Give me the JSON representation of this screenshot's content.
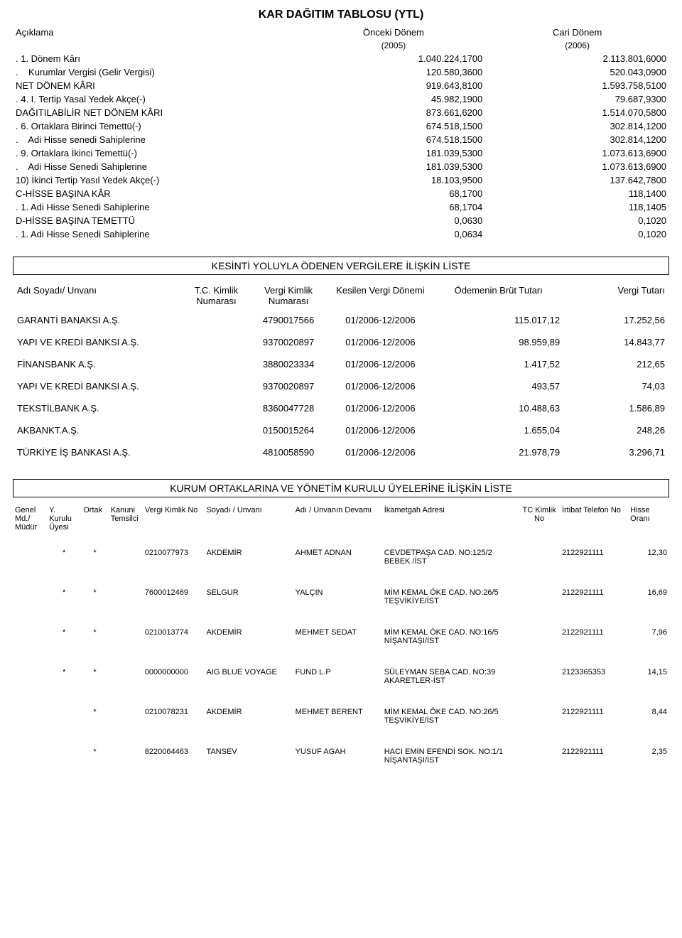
{
  "title": "KAR DAĞITIM TABLOSU (YTL)",
  "cols": {
    "desc": "Açıklama",
    "prev": "Önceki Dönem",
    "prev_year": "(2005)",
    "curr": "Cari Dönem",
    "curr_year": "(2006)"
  },
  "rows": [
    {
      "d": ". 1. Dönem Kârı",
      "p": "1.040.224,1700",
      "c": "2.113.801,6000"
    },
    {
      "d": ".    Kurumlar Vergisi (Gelir Vergisi)",
      "p": "120.580,3600",
      "c": "520.043,0900"
    },
    {
      "d": "NET DÖNEM KÂRI",
      "p": "919.643,8100",
      "c": "1.593.758,5100"
    },
    {
      "d": ". 4. I. Tertip Yasal Yedek Akçe(-)",
      "p": "45.982,1900",
      "c": "79.687,9300"
    },
    {
      "d": "DAĞITILABİLİR NET DÖNEM KÂRI",
      "p": "873.661,6200",
      "c": "1.514.070,5800"
    },
    {
      "d": ". 6. Ortaklara Birinci Temettü(-)",
      "p": "674.518,1500",
      "c": "302.814,1200"
    },
    {
      "d": ".    Adi Hisse senedi Sahiplerine",
      "p": "674.518,1500",
      "c": "302.814,1200"
    },
    {
      "d": ". 9. Ortaklara İkinci Temettü(-)",
      "p": "181.039,5300",
      "c": "1.073.613,6900"
    },
    {
      "d": ".    Adi Hisse Senedi Sahiplerine",
      "p": "181.039,5300",
      "c": "1.073.613,6900"
    },
    {
      "d": "10) İkinci Tertip Yasıl Yedek Akçe(-)",
      "p": "18.103,9500",
      "c": "137.642,7800"
    },
    {
      "d": "C-HİSSE BAŞINA KÂR",
      "p": "68,1700",
      "c": "118,1400"
    },
    {
      "d": ". 1. Adi Hisse Senedi Sahiplerine",
      "p": "68,1704",
      "c": "118,1405"
    },
    {
      "d": "D-HİSSE BAŞINA TEMETTÜ",
      "p": "0,0630",
      "c": "0,1020"
    },
    {
      "d": ". 1. Adi Hisse Senedi Sahiplerine",
      "p": "0,0634",
      "c": "0,1020"
    }
  ],
  "box2": "KESİNTİ YOLUYLA ÖDENEN VERGİLERE İLİŞKİN LİSTE",
  "t2_headers": {
    "name": "Adı Soyadı/ Unvanı",
    "tc": "T.C. Kimlik Numarası",
    "vk": "Vergi Kimlik Numarası",
    "period": "Kesilen Vergi Dönemi",
    "gross": "Ödemenin Brüt Tutarı",
    "tax": "Vergi Tutarı"
  },
  "t2_rows": [
    {
      "name": "GARANTİ BANAKSI A.Ş.",
      "tc": "",
      "vk": "4790017566",
      "period": "01/2006-12/2006",
      "gross": "115.017,12",
      "tax": "17.252,56"
    },
    {
      "name": "YAPI VE KREDİ BANKSI A.Ş.",
      "tc": "",
      "vk": "9370020897",
      "period": "01/2006-12/2006",
      "gross": "98.959,89",
      "tax": "14.843,77"
    },
    {
      "name": "FİNANSBANK A.Ş.",
      "tc": "",
      "vk": "3880023334",
      "period": "01/2006-12/2006",
      "gross": "1.417,52",
      "tax": "212,65"
    },
    {
      "name": "YAPI VE KREDİ BANKSI A.Ş.",
      "tc": "",
      "vk": "9370020897",
      "period": "01/2006-12/2006",
      "gross": "493,57",
      "tax": "74,03"
    },
    {
      "name": "TEKSTİLBANK A.Ş.",
      "tc": "",
      "vk": "8360047728",
      "period": "01/2006-12/2006",
      "gross": "10.488,63",
      "tax": "1.586,89"
    },
    {
      "name": "AKBANKT.A.Ş.",
      "tc": "",
      "vk": "0150015264",
      "period": "01/2006-12/2006",
      "gross": "1.655,04",
      "tax": "248,26"
    },
    {
      "name": "TÜRKİYE İŞ BANKASI A.Ş.",
      "tc": "",
      "vk": "4810058590",
      "period": "01/2006-12/2006",
      "gross": "21.978,79",
      "tax": "3.296,71"
    }
  ],
  "box3": "KURUM ORTAKLARINA VE YÖNETİM KURULU ÜYELERİNE İLİŞKİN LİSTE",
  "t3_headers": {
    "gm": "Genel Md./ Müdür",
    "yk": "Y. Kurulu Üyesi",
    "ortak": "Ortak",
    "kt": "Kanuni Temsilci",
    "vkn": "Vergi Kimlik No",
    "soyad": "Soyadı / Unvanı",
    "ad": "Adı / Unvanın Devamı",
    "adres": "İkametgah Adresi",
    "tckn": "TC Kimlik No",
    "tel": "İrtibat Telefon No",
    "hisse": "Hisse Oranı"
  },
  "t3_rows": [
    {
      "gm": "",
      "yk": "*",
      "ortak": "*",
      "kt": "",
      "vkn": "0210077973",
      "soyad": "AKDEMİR",
      "ad": "AHMET ADNAN",
      "adres": "CEVDETPAŞA CAD. NO:125/2 BEBEK /İST",
      "tckn": "",
      "tel": "2122921111",
      "hisse": "12,30"
    },
    {
      "gm": "",
      "yk": "*",
      "ortak": "*",
      "kt": "",
      "vkn": "7600012469",
      "soyad": "SELGUR",
      "ad": "YALÇIN",
      "adres": "MİM KEMAL ÖKE CAD. NO:26/5 TEŞVİKİYE/İST",
      "tckn": "",
      "tel": "2122921111",
      "hisse": "16,69"
    },
    {
      "gm": "",
      "yk": "*",
      "ortak": "*",
      "kt": "",
      "vkn": "0210013774",
      "soyad": "AKDEMİR",
      "ad": "MEHMET SEDAT",
      "adres": "MİM KEMAL ÖKE CAD. NO:16/5 NİŞANTAŞI/İST",
      "tckn": "",
      "tel": "2122921111",
      "hisse": "7,96"
    },
    {
      "gm": "",
      "yk": "*",
      "ortak": "*",
      "kt": "",
      "vkn": "0000000000",
      "soyad": "AIG BLUE VOYAGE",
      "ad": "FUND L.P",
      "adres": "SÜLEYMAN SEBA CAD. NO:39 AKARETLER-İST",
      "tckn": "",
      "tel": "2123365353",
      "hisse": "14,15"
    },
    {
      "gm": "",
      "yk": "",
      "ortak": "*",
      "kt": "",
      "vkn": "0210078231",
      "soyad": "AKDEMİR",
      "ad": "MEHMET BERENT",
      "adres": "MİM KEMAL ÖKE CAD. NO:26/5 TEŞVİKİYE/İST",
      "tckn": "",
      "tel": "2122921111",
      "hisse": "8,44"
    },
    {
      "gm": "",
      "yk": "",
      "ortak": "*",
      "kt": "",
      "vkn": "8220064463",
      "soyad": "TANSEV",
      "ad": "YUSUF AGAH",
      "adres": "HACI EMİN EFENDİ SOK. NO:1/1 NİŞANTAŞI/İST",
      "tckn": "",
      "tel": "2122921111",
      "hisse": "2,35"
    }
  ]
}
